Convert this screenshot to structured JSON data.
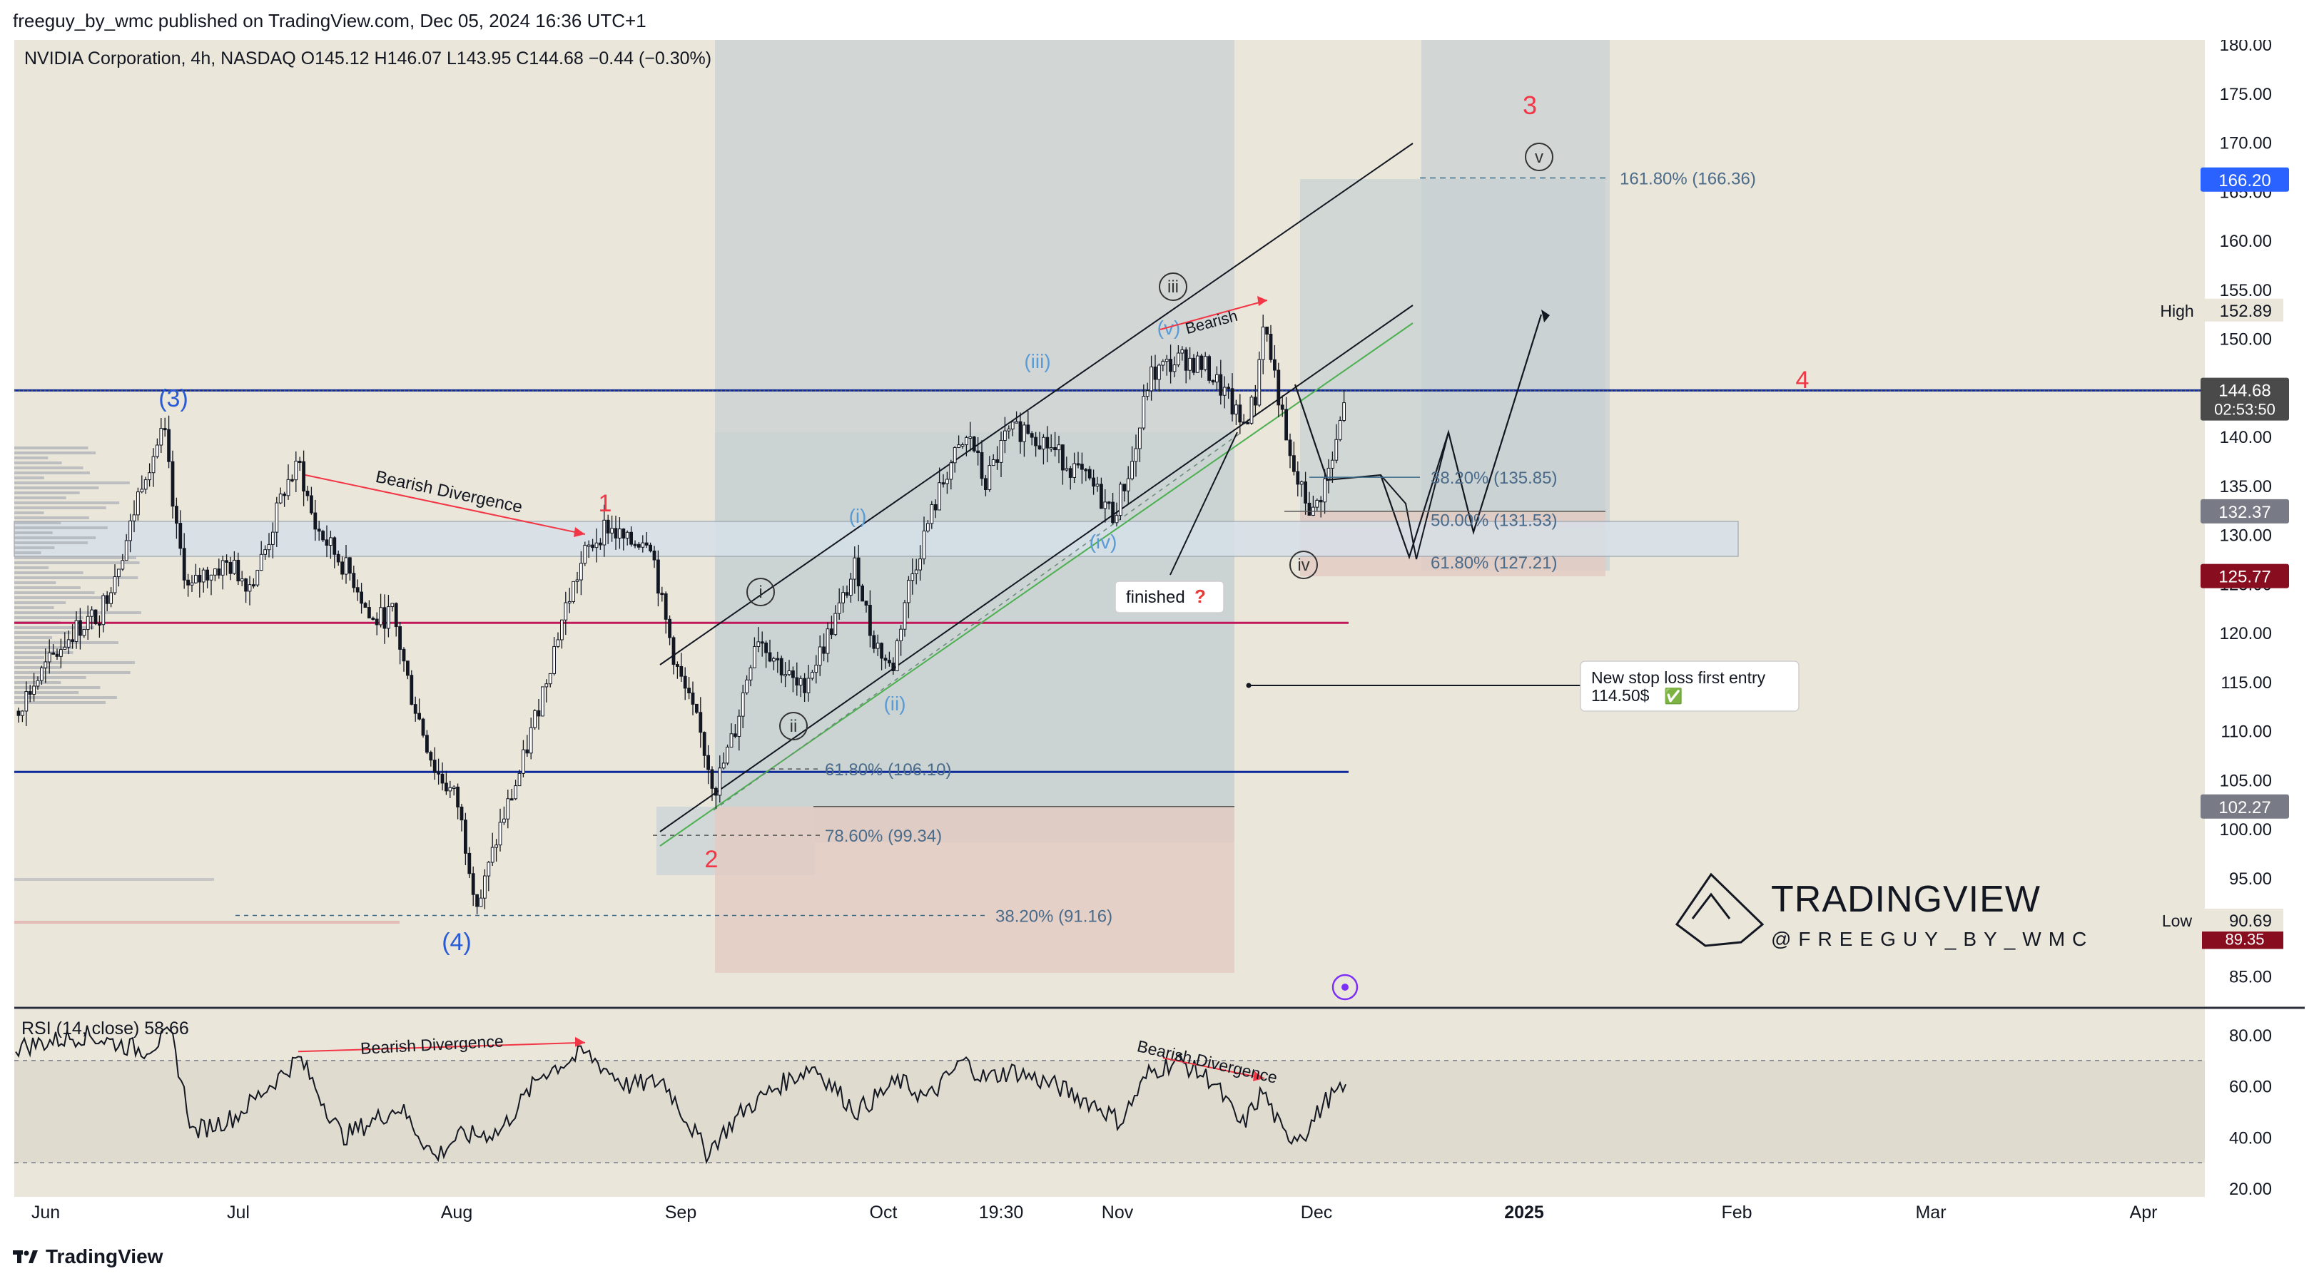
{
  "header": {
    "publish_line": "freeguy_by_wmc published on TradingView.com, Dec 05, 2024 16:36 UTC+1",
    "legend": "NVIDIA Corporation, 4h, NASDAQ  O145.12  H146.07  L143.95  C144.68  −0.44 (−0.30%)",
    "rsi_legend": "RSI (14, close)  58.66"
  },
  "footer": {
    "brand": "TradingView"
  },
  "colors": {
    "background": "#ebe6da",
    "up_candle": "#ffffff",
    "down_candle": "#131722",
    "blue_line": "#0d2a9a",
    "red_line": "#c2185b",
    "wave_red": "#f23645",
    "wave_blue": "#2a5bd7",
    "wave_lightblue": "#5b9bd5",
    "green": "#4caf50",
    "box_teal": "#c9d2d4",
    "box_red": "#e3cbc2"
  },
  "chart_data": {
    "type": "candlestick",
    "title": "NVIDIA Corporation, 4h, NASDAQ",
    "ohlc_last": {
      "open": 145.12,
      "high": 146.07,
      "low": 143.95,
      "close": 144.68,
      "change": -0.44,
      "change_pct": -0.3
    },
    "ylim": [
      84,
      180.5
    ],
    "y_ticks": [
      180,
      175,
      170,
      165,
      160,
      155,
      150,
      145,
      140,
      135,
      130,
      125,
      120,
      115,
      110,
      105,
      100,
      95,
      90,
      85
    ],
    "x_labels": [
      "Jun",
      "Jul",
      "Aug",
      "Sep",
      "Oct",
      "19:30",
      "Nov",
      "Dec",
      "2025",
      "Feb",
      "Mar",
      "Apr"
    ],
    "price_badges": [
      {
        "value": "166.20",
        "price": 166.2,
        "color": "#2962ff"
      },
      {
        "value": "144.68",
        "price": 144.68,
        "sub": "02:53:50",
        "color": "#4a4a4a"
      },
      {
        "value": "132.37",
        "price": 132.37,
        "color": "#787b86"
      },
      {
        "value": "125.77",
        "price": 125.77,
        "color": "#880e1f"
      },
      {
        "value": "102.27",
        "price": 102.27,
        "color": "#787b86"
      }
    ],
    "high_label": {
      "label": "High",
      "value": "152.89",
      "price": 152.89
    },
    "low_label": {
      "label": "Low",
      "value": "90.69",
      "price": 90.69,
      "hidden_value": "89.35"
    },
    "horizontal_levels": [
      {
        "name": "blue-resistance",
        "price": 144.7,
        "color": "#0d2a9a"
      },
      {
        "name": "red-level",
        "price": 121.0,
        "color": "#c2185b"
      },
      {
        "name": "blue-support",
        "price": 105.8,
        "color": "#0d2a9a"
      }
    ],
    "fib_labels": [
      {
        "text": "161.80% (166.36)",
        "price": 166.36
      },
      {
        "text": "38.20% (135.85)",
        "price": 135.85
      },
      {
        "text": "50.00% (131.53)",
        "price": 131.53
      },
      {
        "text": "61.80% (127.21)",
        "price": 127.21
      },
      {
        "text": "61.80% (106.10)",
        "price": 106.1
      },
      {
        "text": "78.60% (99.34)",
        "price": 99.34
      },
      {
        "text": "38.20% (91.16)",
        "price": 91.16
      }
    ],
    "wave_labels": [
      {
        "text": "(3)",
        "color": "wave_blue"
      },
      {
        "text": "(4)",
        "color": "wave_blue"
      },
      {
        "text": "1",
        "color": "wave_red"
      },
      {
        "text": "2",
        "color": "wave_red"
      },
      {
        "text": "3",
        "color": "wave_red"
      },
      {
        "text": "4",
        "color": "wave_red"
      },
      {
        "text": "(i)",
        "color": "wave_lightblue"
      },
      {
        "text": "(ii)",
        "color": "wave_lightblue"
      },
      {
        "text": "(iii)",
        "color": "wave_lightblue"
      },
      {
        "text": "(iv)",
        "color": "wave_lightblue"
      },
      {
        "text": "(v)",
        "color": "wave_lightblue"
      },
      {
        "text": "i",
        "color": "circle"
      },
      {
        "text": "ii",
        "color": "circle"
      },
      {
        "text": "iii",
        "color": "circle"
      },
      {
        "text": "iv",
        "color": "circle"
      },
      {
        "text": "v",
        "color": "circle"
      }
    ],
    "annotations": {
      "bearish_divergence_price": "Bearish Divergence",
      "bearish_short": "Bearish",
      "finished": "finished",
      "finished_mark": "?",
      "stop_loss_line1": "New stop loss first entry",
      "stop_loss_line2": "114.50$",
      "stop_loss_check": "✅",
      "rsi_divergence_1": "Bearish Divergence",
      "rsi_divergence_2": "Bearish Divergence"
    },
    "watermark": {
      "brand": "TRADINGVIEW",
      "handle": "@FREEGUY_BY_WMC"
    },
    "rsi": {
      "label": "RSI (14, close)",
      "value": 58.66,
      "ylim": [
        20,
        90
      ],
      "y_ticks": [
        80,
        60,
        40,
        20
      ],
      "upper_band": 70,
      "lower_band": 30
    }
  }
}
